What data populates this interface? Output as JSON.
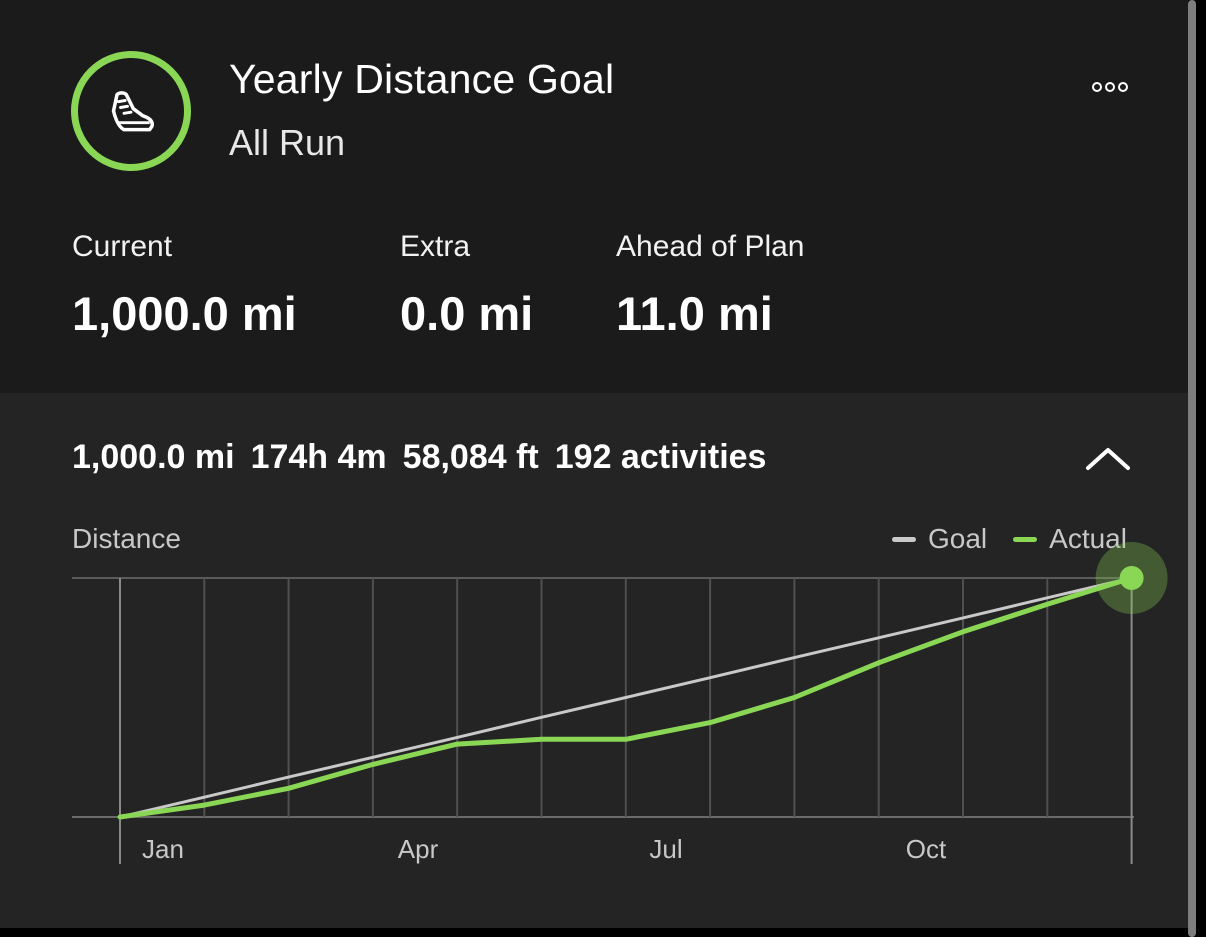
{
  "header": {
    "title": "Yearly Distance Goal",
    "subtitle": "All Run",
    "icon": "running-shoe-icon",
    "more_icon": "more-options-icon"
  },
  "stats": [
    {
      "label": "Current",
      "value": "1,000.0 mi"
    },
    {
      "label": "Extra",
      "value": "0.0 mi"
    },
    {
      "label": "Ahead of Plan",
      "value": "11.0 mi"
    }
  ],
  "summary": {
    "distance": "1,000.0 mi",
    "time": "174h 4m",
    "elevation": "58,084 ft",
    "activities": "192 activities"
  },
  "chart": {
    "title": "Distance",
    "legend": {
      "goal": "Goal",
      "actual": "Actual"
    }
  },
  "colors": {
    "accent": "#8ad755",
    "goal_line": "#c9c9c9",
    "background_top": "#1b1b1b",
    "background_bottom": "#242424"
  },
  "chart_data": {
    "type": "line",
    "x_labels": [
      "Jan",
      "Apr",
      "Jul",
      "Oct"
    ],
    "x": [
      0,
      1,
      2,
      3,
      4,
      5,
      6,
      7,
      8,
      9,
      10,
      11,
      12
    ],
    "ylim": [
      0,
      1000
    ],
    "grid": true,
    "series": [
      {
        "name": "Goal",
        "color": "#c9c9c9",
        "values": [
          0,
          83,
          167,
          250,
          333,
          417,
          500,
          583,
          667,
          750,
          833,
          917,
          1000
        ]
      },
      {
        "name": "Actual",
        "color": "#8ad755",
        "values": [
          0,
          50,
          120,
          220,
          305,
          325,
          325,
          395,
          500,
          645,
          775,
          890,
          1000
        ]
      }
    ]
  }
}
